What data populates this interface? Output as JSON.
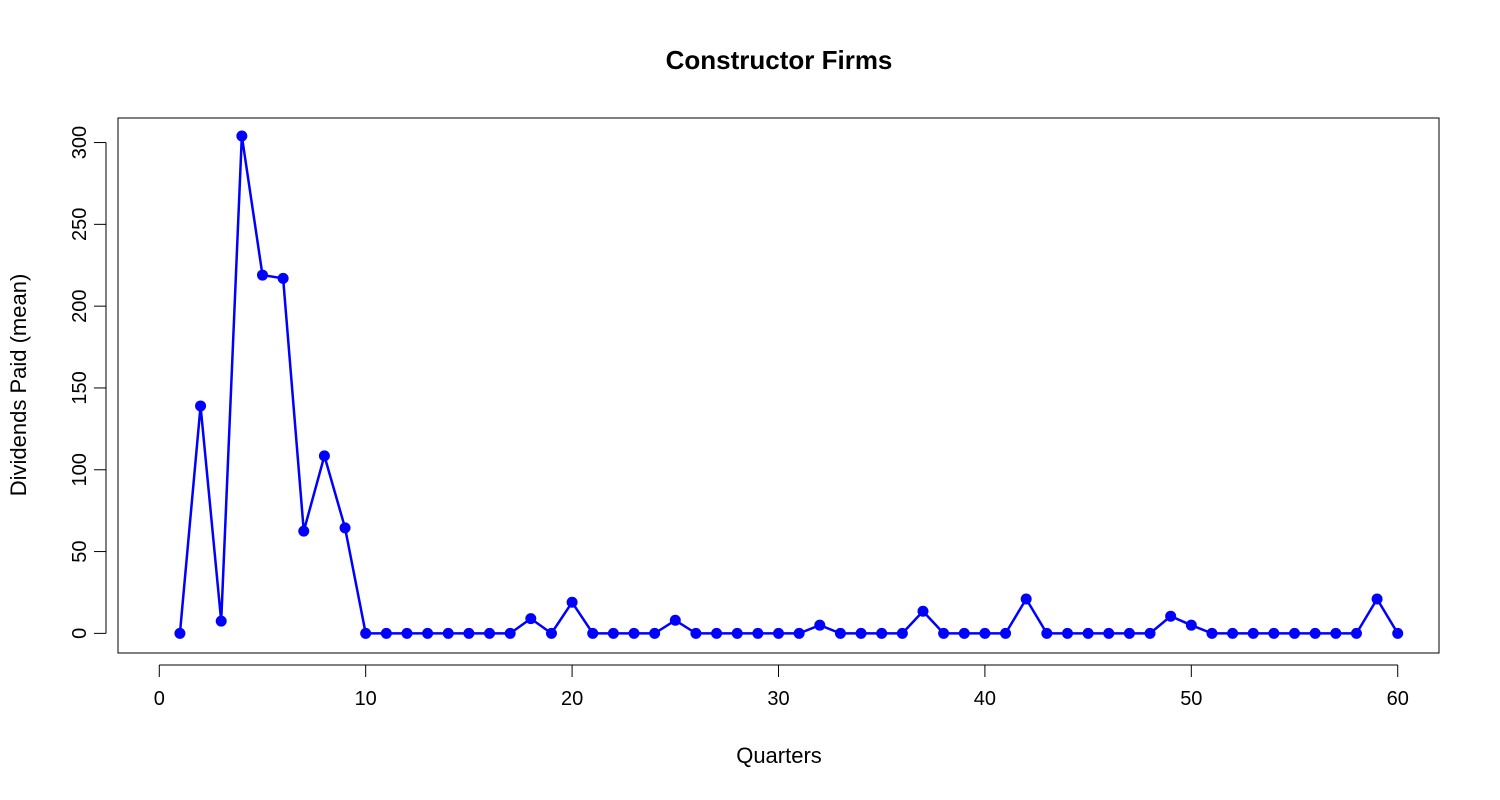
{
  "chart_data": {
    "type": "line",
    "title": "Constructor Firms",
    "xlabel": "Quarters",
    "ylabel": "Dividends Paid (mean)",
    "xlim": [
      -2,
      62
    ],
    "ylim": [
      -12,
      315
    ],
    "xticks": [
      0,
      10,
      20,
      30,
      40,
      50,
      60
    ],
    "yticks": [
      0,
      50,
      100,
      150,
      200,
      250,
      300
    ],
    "grid": false,
    "series": [
      {
        "color": "#0000ff",
        "x": [
          1,
          2,
          3,
          4,
          5,
          6,
          7,
          8,
          9,
          10,
          11,
          12,
          13,
          14,
          15,
          16,
          17,
          18,
          19,
          20,
          21,
          22,
          23,
          24,
          25,
          26,
          27,
          28,
          29,
          30,
          31,
          32,
          33,
          34,
          35,
          36,
          37,
          38,
          39,
          40,
          41,
          42,
          43,
          44,
          45,
          46,
          47,
          48,
          49,
          50,
          51,
          52,
          53,
          54,
          55,
          56,
          57,
          58,
          59,
          60
        ],
        "y": [
          0,
          139,
          7.5,
          304,
          219,
          217,
          62.5,
          108.5,
          64.5,
          0,
          0,
          0,
          0,
          0,
          0,
          0,
          0,
          9,
          0,
          19,
          0,
          0,
          0,
          0,
          8,
          0,
          0,
          0,
          0,
          0,
          0,
          5,
          0,
          0,
          0,
          0,
          13.5,
          0,
          0,
          0,
          0,
          21,
          0,
          0,
          0,
          0,
          0,
          0,
          10.5,
          5,
          0,
          0,
          0,
          0,
          0,
          0,
          0,
          0,
          21,
          0
        ]
      }
    ]
  }
}
